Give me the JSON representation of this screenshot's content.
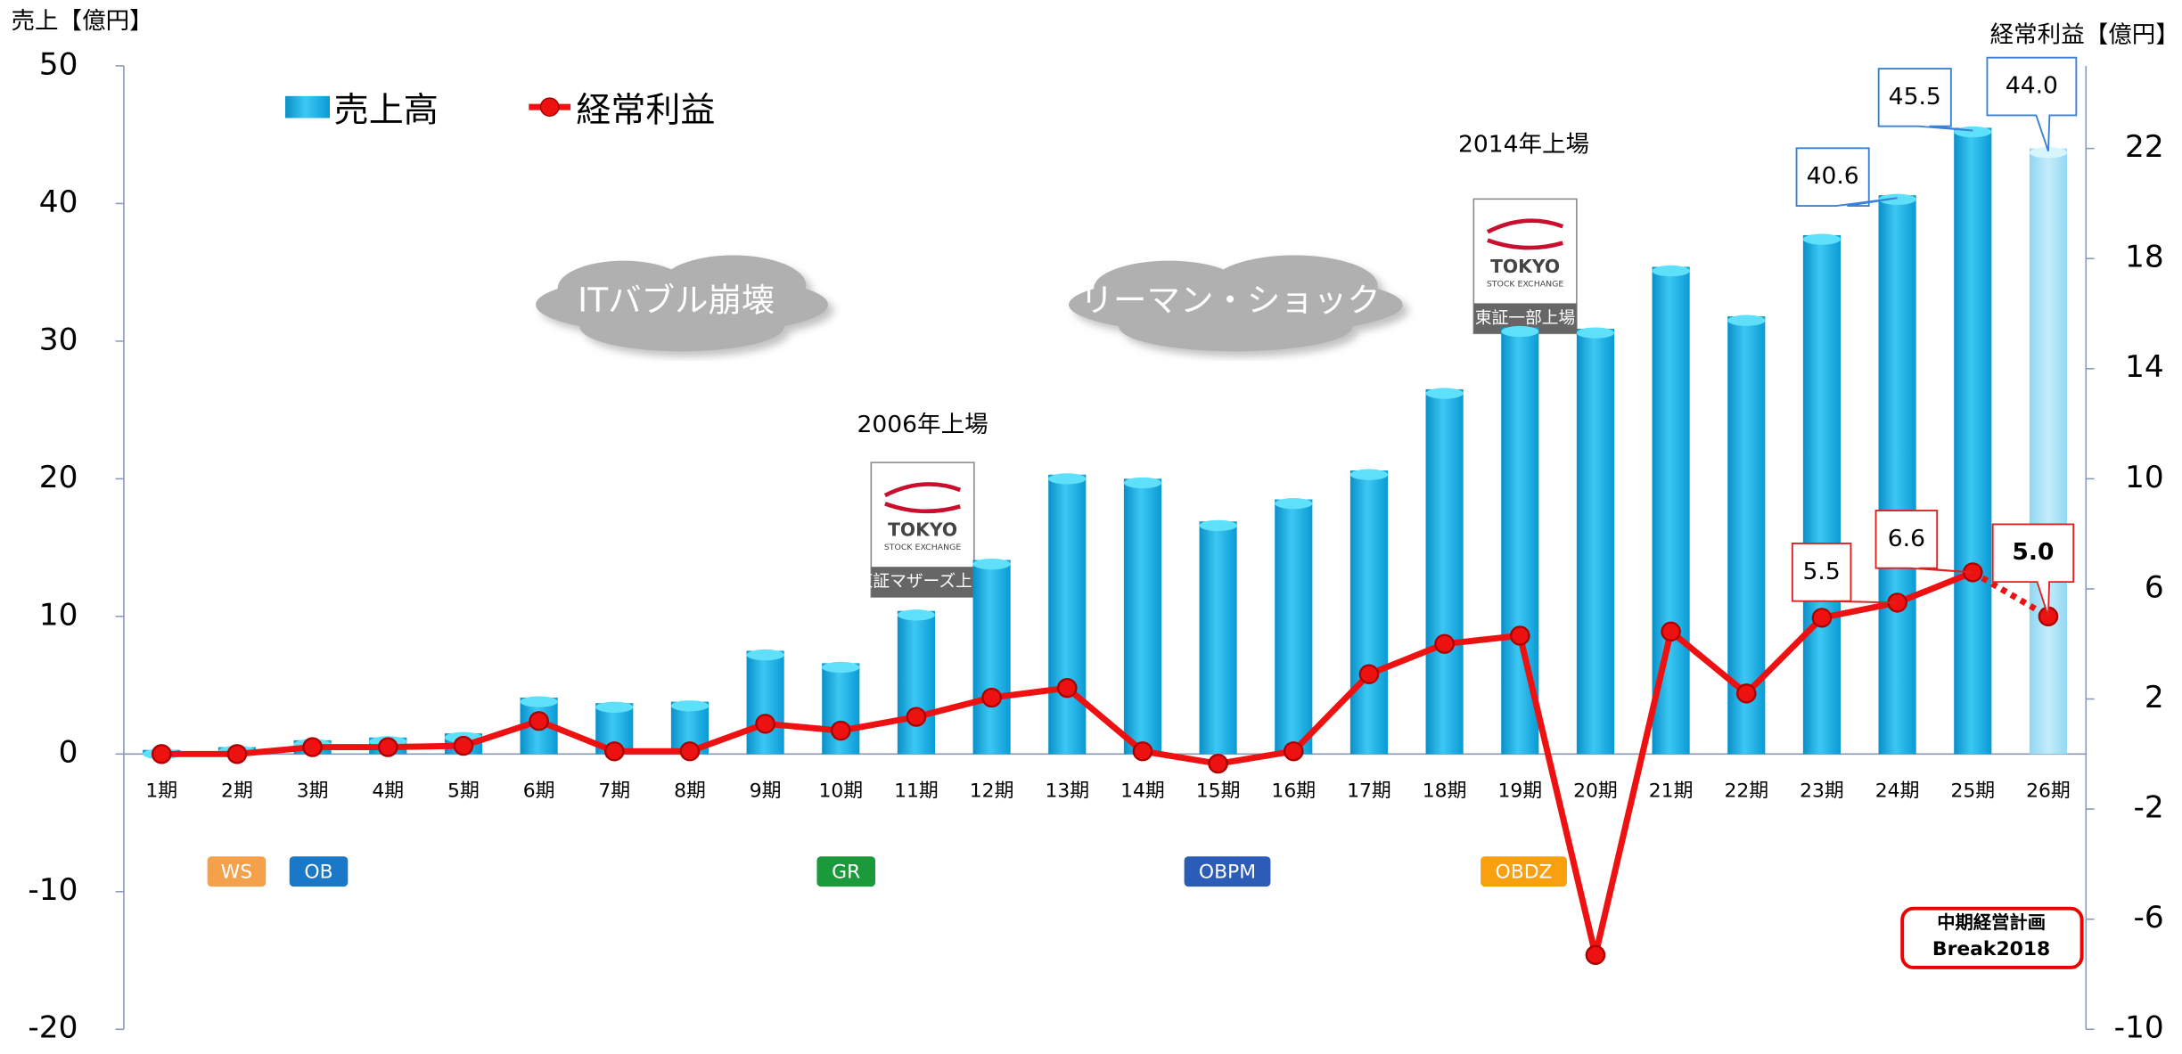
{
  "chart_data": {
    "type": "bar_line",
    "y_label": "売上【億円】",
    "y2_label": "経常利益【億円】",
    "categories": [
      "1期",
      "2期",
      "3期",
      "4期",
      "5期",
      "6期",
      "7期",
      "8期",
      "9期",
      "10期",
      "11期",
      "12期",
      "13期",
      "14期",
      "15期",
      "16期",
      "17期",
      "18期",
      "19期",
      "20期",
      "21期",
      "22期",
      "23期",
      "24期",
      "25期",
      "26期"
    ],
    "series": [
      {
        "name": "売上高",
        "type": "bar",
        "color": "#1cb6e8",
        "values": [
          0.3,
          0.5,
          1.0,
          1.2,
          1.5,
          4.1,
          3.7,
          3.8,
          7.5,
          6.6,
          10.4,
          14.1,
          20.3,
          20.0,
          16.9,
          18.5,
          20.6,
          26.5,
          31.0,
          30.9,
          35.4,
          31.8,
          37.7,
          40.6,
          45.5,
          44.0
        ],
        "value_labels": [
          null,
          null,
          null,
          null,
          null,
          null,
          null,
          null,
          null,
          null,
          null,
          null,
          null,
          null,
          null,
          null,
          null,
          null,
          null,
          null,
          null,
          null,
          null,
          "40.6",
          "45.5",
          "44.0"
        ]
      },
      {
        "name": "経常利益",
        "type": "line",
        "axis": "y2",
        "color": "#ee1111",
        "values": [
          0,
          0,
          0.25,
          0.25,
          0.3,
          1.2,
          0.1,
          0.1,
          1.1,
          0.85,
          1.35,
          2.05,
          2.4,
          0.1,
          -0.35,
          0.1,
          2.9,
          4.0,
          4.3,
          -7.3,
          4.45,
          2.2,
          4.95,
          5.5,
          6.6,
          5.0
        ],
        "value_labels": [
          null,
          null,
          null,
          null,
          null,
          null,
          null,
          null,
          null,
          null,
          null,
          null,
          null,
          null,
          null,
          null,
          null,
          null,
          null,
          null,
          null,
          null,
          null,
          "5.5",
          "6.6",
          "5.0"
        ]
      }
    ],
    "ylim": [
      -20,
      50
    ],
    "yticks": [
      -20,
      -10,
      0,
      10,
      20,
      30,
      40,
      50
    ],
    "y2lim": [
      -10,
      25
    ],
    "y2ticks": [
      -10,
      -6,
      -2,
      2,
      6,
      10,
      14,
      18,
      22
    ],
    "clouds": [
      "ITバブル崩壊",
      "リーマン・ショック"
    ],
    "listings": [
      {
        "year": "2006年上場",
        "badge": "東証マザーズ上場"
      },
      {
        "year": "2014年上場",
        "badge": "東証一部上場"
      }
    ],
    "logo": [
      "TOKYO",
      "STOCK EXCHANGE"
    ],
    "badges": [
      {
        "text": "WS",
        "color": "#f5a04a"
      },
      {
        "text": "OB",
        "color": "#1a78c8"
      },
      {
        "text": "GR",
        "color": "#1a9a3a"
      },
      {
        "text": "OBPM",
        "color": "#2a5cb8"
      },
      {
        "text": "OBDZ",
        "color": "#f8a010"
      }
    ],
    "plan": [
      "中期経営計画",
      "Break2018"
    ]
  }
}
